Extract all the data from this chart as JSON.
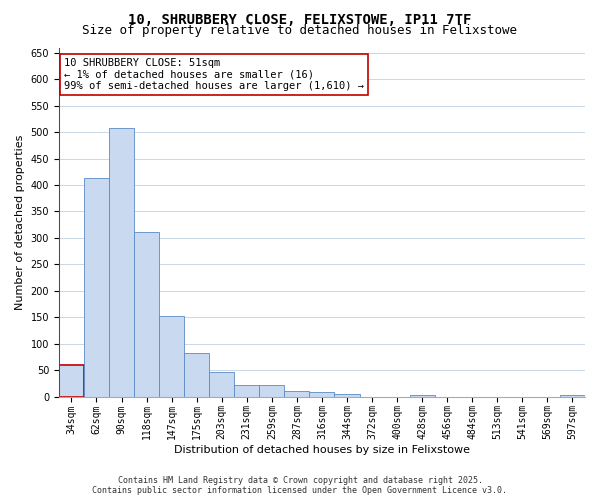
{
  "title_line1": "10, SHRUBBERY CLOSE, FELIXSTOWE, IP11 7TF",
  "title_line2": "Size of property relative to detached houses in Felixstowe",
  "xlabel": "Distribution of detached houses by size in Felixstowe",
  "ylabel": "Number of detached properties",
  "categories": [
    "34sqm",
    "62sqm",
    "90sqm",
    "118sqm",
    "147sqm",
    "175sqm",
    "203sqm",
    "231sqm",
    "259sqm",
    "287sqm",
    "316sqm",
    "344sqm",
    "372sqm",
    "400sqm",
    "428sqm",
    "456sqm",
    "484sqm",
    "513sqm",
    "541sqm",
    "569sqm",
    "597sqm"
  ],
  "values": [
    60,
    413,
    508,
    312,
    153,
    83,
    46,
    22,
    22,
    10,
    8,
    5,
    0,
    0,
    3,
    0,
    0,
    0,
    0,
    0,
    3
  ],
  "bar_color": "#c9d9f0",
  "bar_edge_color": "#5a8ac6",
  "highlight_bar_index": 0,
  "highlight_bar_edge_color": "#c00000",
  "vline_color": "#c00000",
  "annotation_text": "10 SHRUBBERY CLOSE: 51sqm\n← 1% of detached houses are smaller (16)\n99% of semi-detached houses are larger (1,610) →",
  "annotation_box_edge_color": "#c00000",
  "annotation_box_face_color": "#ffffff",
  "ylim": [
    0,
    660
  ],
  "yticks": [
    0,
    50,
    100,
    150,
    200,
    250,
    300,
    350,
    400,
    450,
    500,
    550,
    600,
    650
  ],
  "footer_line1": "Contains HM Land Registry data © Crown copyright and database right 2025.",
  "footer_line2": "Contains public sector information licensed under the Open Government Licence v3.0.",
  "background_color": "#ffffff",
  "grid_color": "#c8d8e8",
  "title_fontsize": 10,
  "subtitle_fontsize": 9,
  "axis_label_fontsize": 8,
  "tick_fontsize": 7,
  "annotation_fontsize": 7.5,
  "footer_fontsize": 6
}
